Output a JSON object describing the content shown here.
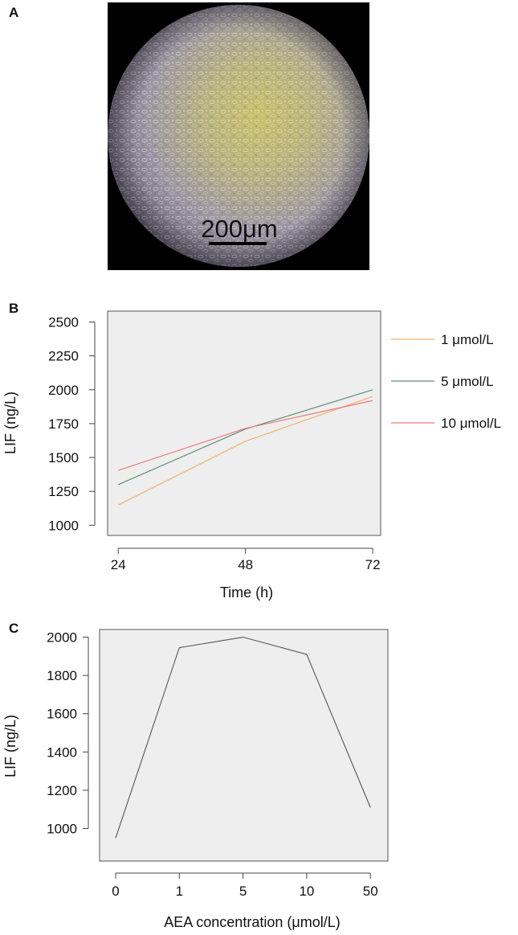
{
  "panels": {
    "a": "A",
    "b": "B",
    "c": "C"
  },
  "micrograph": {
    "scale_label": "200μm"
  },
  "chart_data": [
    {
      "type": "line",
      "panel": "B",
      "xlabel": "Time (h)",
      "ylabel": "LIF (ng/L)",
      "x": [
        24,
        48,
        72
      ],
      "xlim": [
        22,
        73.5
      ],
      "ylim": [
        925,
        2580
      ],
      "yticks": [
        1000,
        1250,
        1500,
        1750,
        2000,
        2250,
        2500
      ],
      "grid": false,
      "legend": "right",
      "series": [
        {
          "name": "1 μmol/L",
          "color": "#f5b26b",
          "values": [
            1150,
            1620,
            1950
          ]
        },
        {
          "name": "5 μmol/L",
          "color": "#5f8f74",
          "values": [
            1300,
            1710,
            2000
          ]
        },
        {
          "name": "10 μmol/L",
          "color": "#ee7a7a",
          "values": [
            1405,
            1715,
            1920
          ]
        }
      ]
    },
    {
      "type": "line",
      "panel": "C",
      "xlabel": "AEA concentration (μmol/L)",
      "ylabel": "LIF (ng/L)",
      "categories": [
        "0",
        "1",
        "5",
        "10",
        "50"
      ],
      "ylim": [
        830,
        2040
      ],
      "yticks": [
        1000,
        1200,
        1400,
        1600,
        1800,
        2000
      ],
      "grid": false,
      "series": [
        {
          "color": "#555555",
          "values": [
            950,
            1945,
            2000,
            1910,
            1110
          ]
        }
      ]
    }
  ]
}
